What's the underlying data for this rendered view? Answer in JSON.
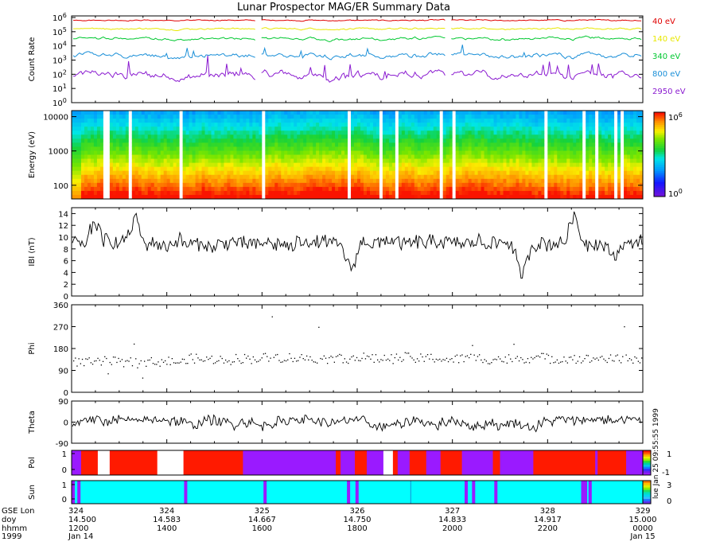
{
  "title": "Lunar Prospector MAG/ER Summary Data",
  "colors": {
    "ch40": "#e00000",
    "ch140": "#e8e800",
    "ch340": "#00c830",
    "ch800": "#1a8fd8",
    "ch2950": "#8a1ad0",
    "pol_pos": "#ff1a00",
    "pol_neg": "#9a1aff",
    "sun_bg": "#00ffff",
    "sun_shadow": "#9a1aff"
  },
  "icons": {
    "stamp": "print-stamp"
  },
  "stamp_text": "lue Jan 25 09:55:55 1999",
  "chart_data": [
    {
      "type": "line",
      "name": "count-rate",
      "ylabel": "Count Rate",
      "yscale": "log",
      "ylim": [
        1,
        1000000
      ],
      "yticks": [
        "10",
        "10",
        "10",
        "10",
        "10",
        "10",
        "10"
      ],
      "ytick_exps": [
        "0",
        "1",
        "2",
        "3",
        "4",
        "5",
        "6"
      ],
      "series": [
        {
          "name": "40 eV",
          "level": 5.8,
          "noise": 0.08
        },
        {
          "name": "140 eV",
          "level": 5.2,
          "noise": 0.1
        },
        {
          "name": "340 eV",
          "level": 4.5,
          "noise": 0.14
        },
        {
          "name": "800 eV",
          "level": 3.3,
          "noise": 0.2
        },
        {
          "name": "2950 eV",
          "level": 1.9,
          "noise": 0.28
        }
      ]
    },
    {
      "type": "heatmap",
      "name": "energy-spectrogram",
      "ylabel": "Energy (eV)",
      "yscale": "log",
      "ylim": [
        40,
        15000
      ],
      "yticks": [
        "10000",
        "1000",
        "100"
      ],
      "colorbar": {
        "min": "10",
        "min_exp": "0",
        "max": "10",
        "max_exp": "6"
      },
      "gaps_time_fraction": [
        [
          0.058,
          0.068
        ],
        [
          0.101,
          0.104
        ],
        [
          0.189,
          0.197
        ],
        [
          0.333,
          0.34
        ],
        [
          0.484,
          0.49
        ],
        [
          0.54,
          0.546
        ],
        [
          0.564,
          0.57
        ],
        [
          0.646,
          0.65
        ],
        [
          0.665,
          0.67
        ],
        [
          0.704,
          0.708
        ],
        [
          0.827,
          0.831
        ],
        [
          0.896,
          0.9
        ],
        [
          0.918,
          0.922
        ],
        [
          0.95,
          0.953
        ],
        [
          0.962,
          0.966
        ]
      ]
    },
    {
      "type": "line",
      "name": "field-magnitude",
      "ylabel": "IBI (nT)",
      "ylim": [
        0,
        15
      ],
      "yticks": [
        "0",
        "2",
        "4",
        "6",
        "8",
        "10",
        "12",
        "14"
      ],
      "baseline": 9,
      "noise": 2.2,
      "dips": [
        [
          0.49,
          4.8
        ],
        [
          0.79,
          3.5
        ],
        [
          0.95,
          6
        ]
      ],
      "peaks": [
        [
          0.04,
          13.5
        ],
        [
          0.11,
          13.8
        ],
        [
          0.88,
          14.6
        ]
      ]
    },
    {
      "type": "scatter",
      "name": "phi-angle",
      "ylabel": "Phi",
      "ylim": [
        0,
        360
      ],
      "yticks": [
        "0",
        "90",
        "180",
        "270",
        "360"
      ],
      "baseline": 140,
      "spread": 30
    },
    {
      "type": "line",
      "name": "theta-angle",
      "ylabel": "Theta",
      "ylim": [
        -90,
        90
      ],
      "yticks": [
        "-90",
        "0",
        "90"
      ],
      "noise": 35
    },
    {
      "type": "bar",
      "name": "polarity",
      "ylabel": "Pol",
      "yticks": [
        "0",
        "1"
      ],
      "colorbar": {
        "top": "1",
        "bottom": "-1"
      }
    },
    {
      "type": "bar",
      "name": "sun-shadow",
      "ylabel": "Sun",
      "yticks": [
        "0",
        "1"
      ],
      "colorbar": {
        "top": "3",
        "bottom": "0"
      },
      "shadow_time_fraction": [
        0.0,
        0.01,
        0.197,
        0.336,
        0.482,
        0.497,
        0.688,
        0.701,
        0.74,
        0.897,
        0.905
      ]
    }
  ],
  "xaxis": {
    "row_labels": [
      "GSE Lon",
      "doy",
      "hhmm",
      "1999"
    ],
    "ticks": [
      {
        "lon": "324",
        "doy": "14.500",
        "hhmm": "1200",
        "date": "Jan 14"
      },
      {
        "lon": "324",
        "doy": "14.583",
        "hhmm": "1400",
        "date": ""
      },
      {
        "lon": "325",
        "doy": "14.667",
        "hhmm": "1600",
        "date": ""
      },
      {
        "lon": "326",
        "doy": "14.750",
        "hhmm": "1800",
        "date": ""
      },
      {
        "lon": "327",
        "doy": "14.833",
        "hhmm": "2000",
        "date": ""
      },
      {
        "lon": "328",
        "doy": "14.917",
        "hhmm": "2200",
        "date": ""
      },
      {
        "lon": "329",
        "doy": "15.000",
        "hhmm": "0000",
        "date": "Jan 15"
      }
    ]
  }
}
